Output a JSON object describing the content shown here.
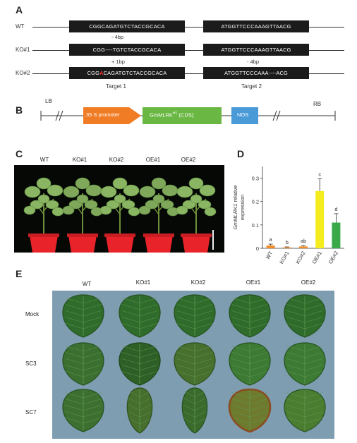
{
  "panel_a": {
    "letter": "A",
    "rows": [
      {
        "label": "WT",
        "seq1": "CGGCAGATGTCTACCGCACA",
        "seq2": "ATGGTTCCCAAAGTTAACG"
      },
      {
        "label": "KO#1",
        "seq1": "CGG----TGTCTACCGCACA",
        "seq2": "ATGGTTCCCAAAGTTAACG"
      },
      {
        "label": "KO#2",
        "seq1_pre": "CGG",
        "seq1_ins": "A",
        "seq1_post": "CAGATGTCTACCGCACA",
        "seq2": "ATGGTTCCCAAA----ACG"
      }
    ],
    "notes": {
      "wt_ko1_1": "- 4bp",
      "ko1_ko2_1": "+ 1bp",
      "wt_ko1_2": "- 4bp"
    },
    "targets": [
      "Target 1",
      "Target 2"
    ]
  },
  "panel_b": {
    "letter": "B",
    "lb": "LB",
    "rb": "RB",
    "promoter": "35 S promoter",
    "gene_main": "GmMLRK",
    "gene_sup": "H1",
    "gene_tail": " (CDS)",
    "terminator": "NOS",
    "colors": {
      "promoter": "#f07d25",
      "gene": "#6ab843",
      "nos": "#4a9ad8"
    }
  },
  "panel_c": {
    "letter": "C",
    "labels": [
      "WT",
      "KO#1",
      "KO#2",
      "OE#1",
      "OE#2"
    ]
  },
  "panel_d": {
    "letter": "D",
    "chart_data": {
      "type": "bar",
      "categories": [
        "WT",
        "KO#1",
        "KO#2",
        "OE#1",
        "OE#2"
      ],
      "values": [
        0.012,
        0.004,
        0.008,
        0.245,
        0.11
      ],
      "errors": [
        0.006,
        0.002,
        0.004,
        0.052,
        0.038
      ],
      "letters": [
        "a",
        "b",
        "ab",
        "c",
        "d"
      ],
      "colors": [
        "#f28c28",
        "#f28c28",
        "#f28c28",
        "#f5ec1f",
        "#3aa94a"
      ],
      "ylabel_pre": "GmMLRK1",
      "ylabel_post": " relative expression",
      "yticks": [
        "0",
        "0.1",
        "0.2",
        "0.3"
      ],
      "ylim": [
        0,
        0.35
      ]
    }
  },
  "panel_e": {
    "letter": "E",
    "cols": [
      "WT",
      "KO#1",
      "KO#2",
      "OE#1",
      "OE#2"
    ],
    "rows": [
      "Mock",
      "SC3",
      "SC7"
    ]
  }
}
